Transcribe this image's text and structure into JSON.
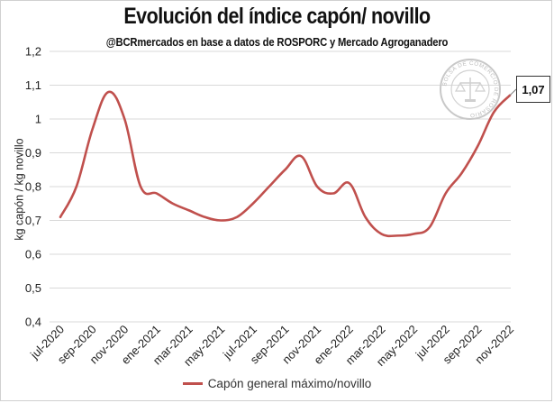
{
  "chart_data": {
    "type": "line",
    "title": "Evolución del índice capón/ novillo",
    "subtitle": "@BCRmercados  en base a datos de ROSPORC y Mercado Agroganadero",
    "ylabel": "kg capón / kg novillo",
    "xlabel": "",
    "ylim": [
      0.4,
      1.2
    ],
    "yticks": [
      "1,2",
      "1,1",
      "1",
      "0,9",
      "0,8",
      "0,7",
      "0,6",
      "0,5",
      "0,4"
    ],
    "xtick_labels": [
      "jul-2020",
      "sep-2020",
      "nov-2020",
      "ene-2021",
      "mar-2021",
      "may-2021",
      "jul-2021",
      "sep-2021",
      "nov-2021",
      "ene-2022",
      "mar-2022",
      "may-2022",
      "jul-2022",
      "sep-2022",
      "nov-2022"
    ],
    "grid": "horizontal",
    "legend_position": "bottom",
    "series": [
      {
        "name": "Capón general máximo/novillo",
        "color": "#c0504d",
        "points": [
          [
            "2020-07",
            0.71
          ],
          [
            "2020-08",
            0.8
          ],
          [
            "2020-09",
            0.97
          ],
          [
            "2020-10",
            1.08
          ],
          [
            "2020-11",
            1.0
          ],
          [
            "2020-12",
            0.8
          ],
          [
            "2021-01",
            0.78
          ],
          [
            "2021-02",
            0.75
          ],
          [
            "2021-03",
            0.73
          ],
          [
            "2021-04",
            0.71
          ],
          [
            "2021-05",
            0.7
          ],
          [
            "2021-06",
            0.71
          ],
          [
            "2021-07",
            0.75
          ],
          [
            "2021-08",
            0.8
          ],
          [
            "2021-09",
            0.85
          ],
          [
            "2021-10",
            0.89
          ],
          [
            "2021-11",
            0.8
          ],
          [
            "2021-12",
            0.78
          ],
          [
            "2022-01",
            0.81
          ],
          [
            "2022-02",
            0.71
          ],
          [
            "2022-03",
            0.66
          ],
          [
            "2022-04",
            0.655
          ],
          [
            "2022-05",
            0.66
          ],
          [
            "2022-06",
            0.68
          ],
          [
            "2022-07",
            0.78
          ],
          [
            "2022-08",
            0.84
          ],
          [
            "2022-09",
            0.92
          ],
          [
            "2022-10",
            1.02
          ],
          [
            "2022-11",
            1.07
          ]
        ]
      }
    ],
    "annotations": [
      {
        "text": "1,07",
        "target": "last-point"
      }
    ]
  },
  "seal": {
    "text": "BOLSA DE COMERCIO DE ROSARIO"
  }
}
